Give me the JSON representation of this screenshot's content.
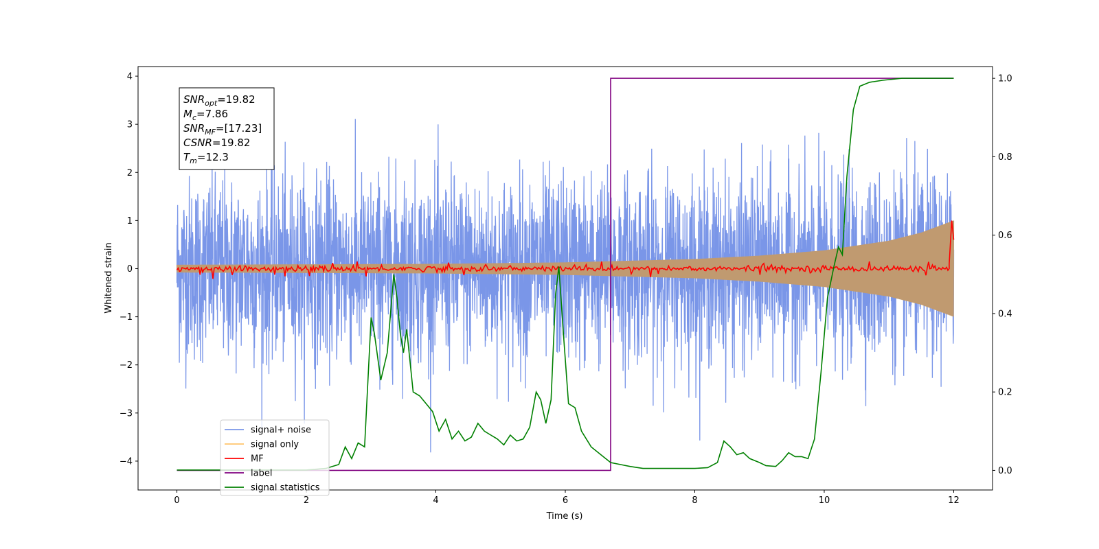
{
  "chart_data": {
    "type": "line",
    "xlabel": "Time (s)",
    "ylabel": "Whitened strain",
    "xlim": [
      -0.6,
      12.6
    ],
    "ylim": [
      -4.6,
      4.2
    ],
    "y2lim": [
      -0.05,
      1.03
    ],
    "x_ticks": [
      0,
      2,
      4,
      6,
      8,
      10,
      12
    ],
    "y_ticks": [
      -4,
      -3,
      -2,
      -1,
      0,
      1,
      2,
      3,
      4
    ],
    "y2_ticks": [
      0.0,
      0.2,
      0.4,
      0.6,
      0.8,
      1.0
    ],
    "y_tick_labels": [
      "−4",
      "−3",
      "−2",
      "−1",
      "0",
      "1",
      "2",
      "3",
      "4"
    ],
    "y2_tick_labels": [
      "0.0",
      "0.2",
      "0.4",
      "0.6",
      "0.8",
      "1.0"
    ],
    "grid": false,
    "legend_position": "lower-left",
    "annotation": [
      {
        "base": "SNR",
        "sub": "opt",
        "value": "=19.82"
      },
      {
        "base": "M",
        "sub": "c",
        "value": "=7.86"
      },
      {
        "base": "SNR",
        "sub": "MF",
        "value": "=[17.23]"
      },
      {
        "base": "CSNR",
        "sub": "",
        "value": "=19.82"
      },
      {
        "base": "T",
        "sub": "m",
        "value": "=12.3"
      }
    ],
    "series": [
      {
        "name": "signal+ noise",
        "color": "#7a96e8",
        "axis": "left",
        "kind": "noise_band",
        "description_values": {
          "x_start": 0,
          "x_end": 12,
          "typical_peak": 2.5,
          "max_peak": 3.8,
          "min_trough": -4.2
        }
      },
      {
        "name": "signal only",
        "color": "#ffc46b",
        "axis": "left",
        "kind": "chirp_envelope",
        "envelope": [
          [
            0,
            0.08
          ],
          [
            2,
            0.09
          ],
          [
            4,
            0.1
          ],
          [
            6,
            0.13
          ],
          [
            8,
            0.2
          ],
          [
            9,
            0.27
          ],
          [
            10,
            0.38
          ],
          [
            11,
            0.58
          ],
          [
            11.5,
            0.75
          ],
          [
            12,
            1.0
          ]
        ]
      },
      {
        "name": "MF",
        "color": "#ff0000",
        "axis": "left",
        "kind": "noisy_flat",
        "level": 0.0,
        "spread": 0.05,
        "end_spike": [
          [
            11.93,
            0.1
          ],
          [
            11.97,
            1.0
          ],
          [
            12.0,
            0.6
          ]
        ]
      },
      {
        "name": "label",
        "color": "#800080",
        "axis": "right",
        "points": [
          [
            0,
            0
          ],
          [
            6.7,
            0
          ],
          [
            6.7,
            1
          ],
          [
            12,
            1
          ]
        ]
      },
      {
        "name": "signal statistics",
        "color": "#008000",
        "axis": "right",
        "points": [
          [
            0,
            0.001
          ],
          [
            0.5,
            0.001
          ],
          [
            1.0,
            0.001
          ],
          [
            1.5,
            0.001
          ],
          [
            2.0,
            0.001
          ],
          [
            2.3,
            0.005
          ],
          [
            2.5,
            0.015
          ],
          [
            2.6,
            0.06
          ],
          [
            2.7,
            0.03
          ],
          [
            2.8,
            0.07
          ],
          [
            2.9,
            0.06
          ],
          [
            3.0,
            0.39
          ],
          [
            3.05,
            0.35
          ],
          [
            3.15,
            0.23
          ],
          [
            3.25,
            0.3
          ],
          [
            3.35,
            0.5
          ],
          [
            3.4,
            0.44
          ],
          [
            3.45,
            0.35
          ],
          [
            3.5,
            0.3
          ],
          [
            3.55,
            0.36
          ],
          [
            3.65,
            0.2
          ],
          [
            3.75,
            0.19
          ],
          [
            3.85,
            0.17
          ],
          [
            3.95,
            0.15
          ],
          [
            4.05,
            0.1
          ],
          [
            4.15,
            0.13
          ],
          [
            4.25,
            0.08
          ],
          [
            4.35,
            0.1
          ],
          [
            4.45,
            0.075
          ],
          [
            4.55,
            0.085
          ],
          [
            4.65,
            0.12
          ],
          [
            4.75,
            0.1
          ],
          [
            4.85,
            0.09
          ],
          [
            4.95,
            0.08
          ],
          [
            5.05,
            0.065
          ],
          [
            5.15,
            0.09
          ],
          [
            5.25,
            0.075
          ],
          [
            5.35,
            0.08
          ],
          [
            5.45,
            0.11
          ],
          [
            5.55,
            0.2
          ],
          [
            5.62,
            0.18
          ],
          [
            5.7,
            0.12
          ],
          [
            5.78,
            0.18
          ],
          [
            5.85,
            0.45
          ],
          [
            5.9,
            0.52
          ],
          [
            5.97,
            0.35
          ],
          [
            6.05,
            0.17
          ],
          [
            6.15,
            0.16
          ],
          [
            6.25,
            0.1
          ],
          [
            6.4,
            0.06
          ],
          [
            6.55,
            0.04
          ],
          [
            6.7,
            0.02
          ],
          [
            6.85,
            0.015
          ],
          [
            7.0,
            0.01
          ],
          [
            7.2,
            0.005
          ],
          [
            7.5,
            0.005
          ],
          [
            7.8,
            0.005
          ],
          [
            8.0,
            0.005
          ],
          [
            8.2,
            0.007
          ],
          [
            8.35,
            0.02
          ],
          [
            8.45,
            0.075
          ],
          [
            8.55,
            0.06
          ],
          [
            8.65,
            0.04
          ],
          [
            8.75,
            0.045
          ],
          [
            8.85,
            0.03
          ],
          [
            9.0,
            0.02
          ],
          [
            9.1,
            0.012
          ],
          [
            9.25,
            0.01
          ],
          [
            9.35,
            0.025
          ],
          [
            9.45,
            0.045
          ],
          [
            9.55,
            0.035
          ],
          [
            9.65,
            0.035
          ],
          [
            9.75,
            0.03
          ],
          [
            9.85,
            0.08
          ],
          [
            9.95,
            0.25
          ],
          [
            10.05,
            0.44
          ],
          [
            10.15,
            0.52
          ],
          [
            10.22,
            0.57
          ],
          [
            10.28,
            0.55
          ],
          [
            10.35,
            0.75
          ],
          [
            10.45,
            0.92
          ],
          [
            10.55,
            0.98
          ],
          [
            10.7,
            0.99
          ],
          [
            10.9,
            0.995
          ],
          [
            11.2,
            1.0
          ],
          [
            11.5,
            1.0
          ],
          [
            12.0,
            1.0
          ]
        ]
      }
    ]
  }
}
